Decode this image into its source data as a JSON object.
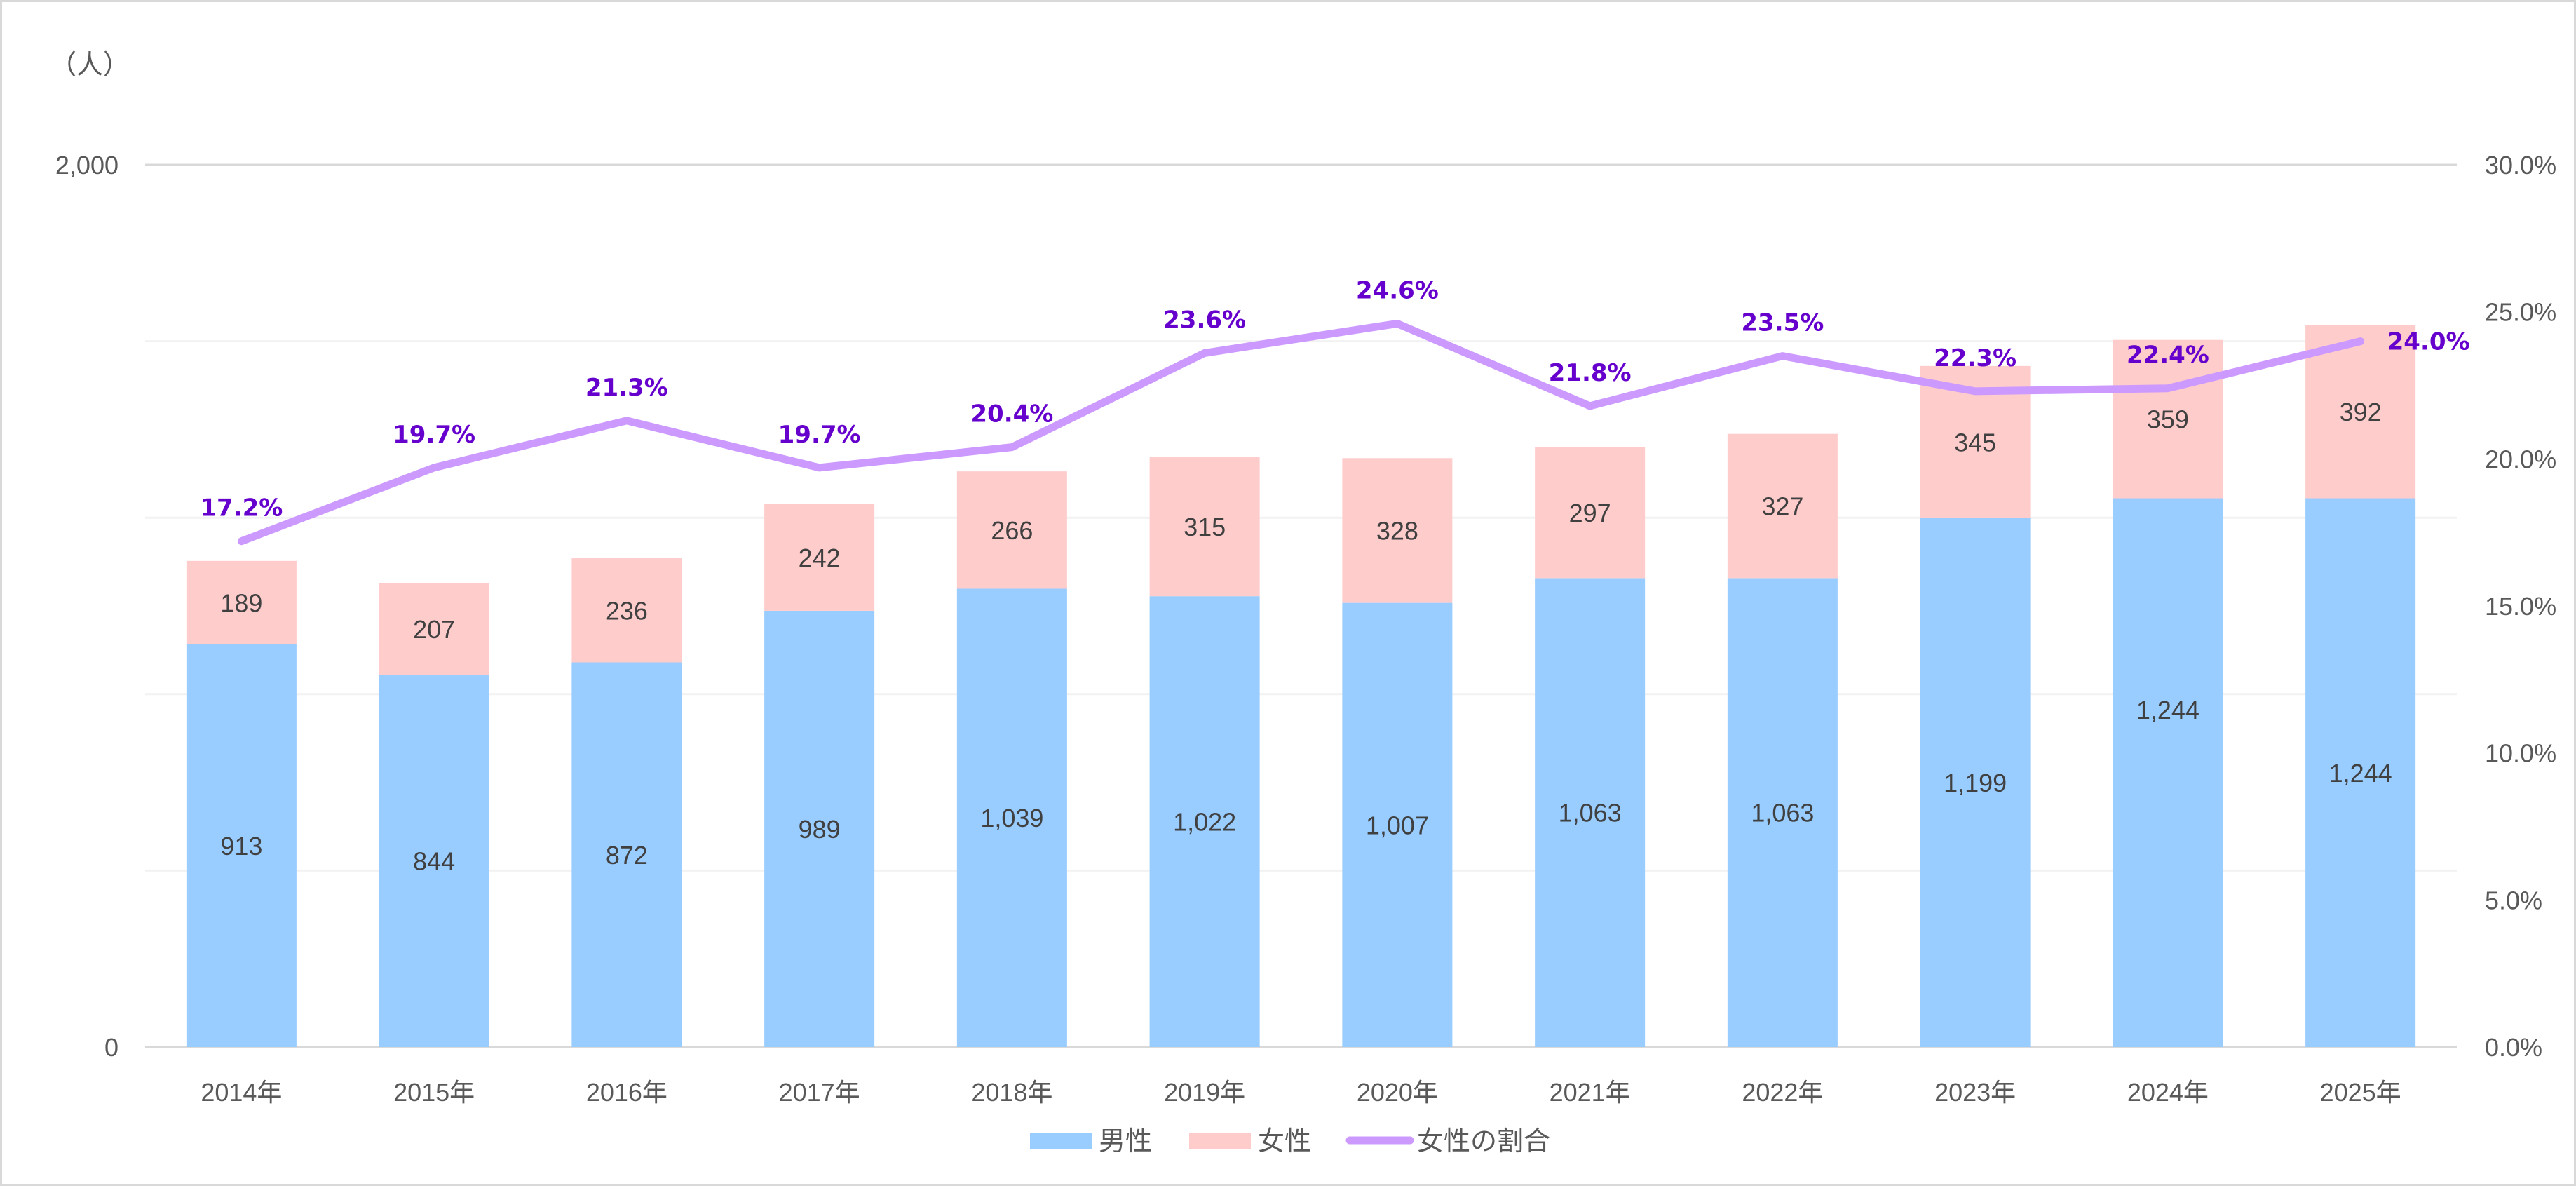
{
  "chart_data": {
    "type": "bar",
    "subtype": "stacked-bar-with-line",
    "title": "",
    "y_unit_label": "（人）",
    "categories": [
      "2014年",
      "2015年",
      "2016年",
      "2017年",
      "2018年",
      "2019年",
      "2020年",
      "2021年",
      "2022年",
      "2023年",
      "2024年",
      "2025年"
    ],
    "series": [
      {
        "name": "男性",
        "type": "bar",
        "axis": "left",
        "color": "#99CCFF",
        "values": [
          913,
          844,
          872,
          989,
          1039,
          1022,
          1007,
          1063,
          1063,
          1199,
          1244,
          1244
        ],
        "labels": [
          "913",
          "844",
          "872",
          "989",
          "1,039",
          "1,022",
          "1,007",
          "1,063",
          "1,063",
          "1,199",
          "1,244",
          "1,244"
        ]
      },
      {
        "name": "女性",
        "type": "bar",
        "axis": "left",
        "color": "#FFCCCC",
        "values": [
          189,
          207,
          236,
          242,
          266,
          315,
          328,
          297,
          327,
          345,
          359,
          392
        ],
        "labels": [
          "189",
          "207",
          "236",
          "242",
          "266",
          "315",
          "328",
          "297",
          "327",
          "345",
          "359",
          "392"
        ]
      },
      {
        "name": "女性の割合",
        "type": "line",
        "axis": "right",
        "color": "#CC99FF",
        "label_color": "#6600CC",
        "values": [
          17.2,
          19.7,
          21.3,
          19.7,
          20.4,
          23.6,
          24.6,
          21.8,
          23.5,
          22.3,
          22.4,
          24.0
        ],
        "labels": [
          "17.2%",
          "19.7%",
          "21.3%",
          "19.7%",
          "20.4%",
          "23.6%",
          "24.6%",
          "21.8%",
          "23.5%",
          "22.3%",
          "22.4%",
          "24.0%"
        ]
      }
    ],
    "y_left": {
      "min": 0,
      "max": 2000,
      "ticks_shown": [
        "0",
        "2,000"
      ],
      "gridline_values": [
        0,
        400,
        800,
        1200,
        1600,
        2000
      ]
    },
    "y_right": {
      "min": 0,
      "max": 30,
      "ticks": [
        "0.0%",
        "5.0%",
        "10.0%",
        "15.0%",
        "20.0%",
        "25.0%",
        "30.0%"
      ],
      "tick_values": [
        0,
        5,
        10,
        15,
        20,
        25,
        30
      ]
    },
    "xlabel": "",
    "ylabel": "",
    "grid": true,
    "legend": {
      "position": "bottom",
      "entries": [
        "男性",
        "女性",
        "女性の割合"
      ]
    }
  }
}
